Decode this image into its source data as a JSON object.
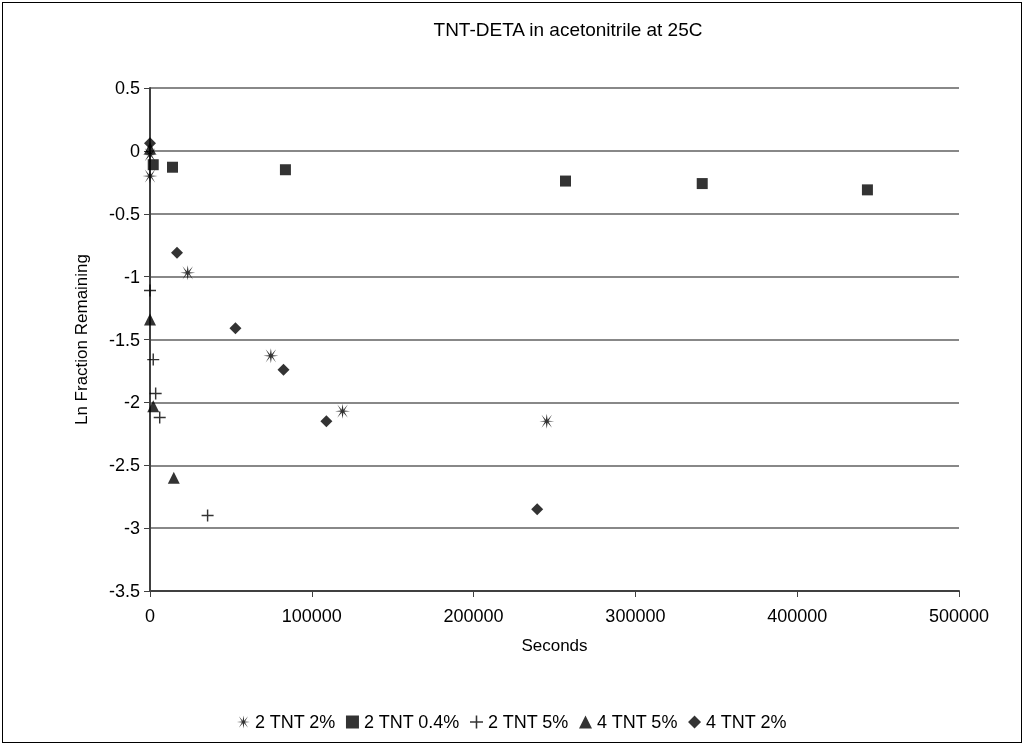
{
  "chart_data": {
    "type": "scatter",
    "title": "TNT-DETA in acetonitrile at 25C",
    "xlabel": "Seconds",
    "ylabel": "Ln Fraction Remaining",
    "xlim": [
      0,
      500000
    ],
    "xticks": [
      0,
      100000,
      200000,
      300000,
      400000,
      500000
    ],
    "ylim": [
      -3.5,
      0.5
    ],
    "yticks": [
      -3.5,
      -3,
      -2.5,
      -2,
      -1.5,
      -1,
      -0.5,
      0,
      0.5
    ],
    "grid": "y",
    "legend": "bottom",
    "series": [
      {
        "name": "2 TNT 2%",
        "color": "#000000",
        "marker": "star",
        "x": [
          0,
          0,
          23300,
          74700,
          119000,
          245200
        ],
        "values": [
          -0.03,
          -0.2,
          -0.97,
          -1.63,
          -2.07,
          -2.15
        ]
      },
      {
        "name": "2 TNT 0.4%",
        "color": "#000000",
        "marker": "square",
        "x": [
          2000,
          13900,
          83700,
          256800,
          341300,
          443400
        ],
        "values": [
          -0.11,
          -0.13,
          -0.15,
          -0.24,
          -0.26,
          -0.31
        ]
      },
      {
        "name": "2 TNT 5%",
        "color": "#000000",
        "marker": "cross",
        "x": [
          0,
          2000,
          3500,
          6000,
          35600
        ],
        "values": [
          -1.11,
          -1.66,
          -1.93,
          -2.12,
          -2.9
        ]
      },
      {
        "name": "4 TNT 5%",
        "color": "#000000",
        "marker": "triangle",
        "x": [
          0,
          0,
          2000,
          14700
        ],
        "values": [
          0.02,
          -1.34,
          -2.03,
          -2.6
        ]
      },
      {
        "name": "4 TNT 2%",
        "color": "#000000",
        "marker": "diamond",
        "x": [
          0,
          16700,
          52800,
          82500,
          109000,
          239300
        ],
        "values": [
          0.06,
          -0.81,
          -1.41,
          -1.74,
          -2.15,
          -2.85
        ]
      }
    ]
  }
}
